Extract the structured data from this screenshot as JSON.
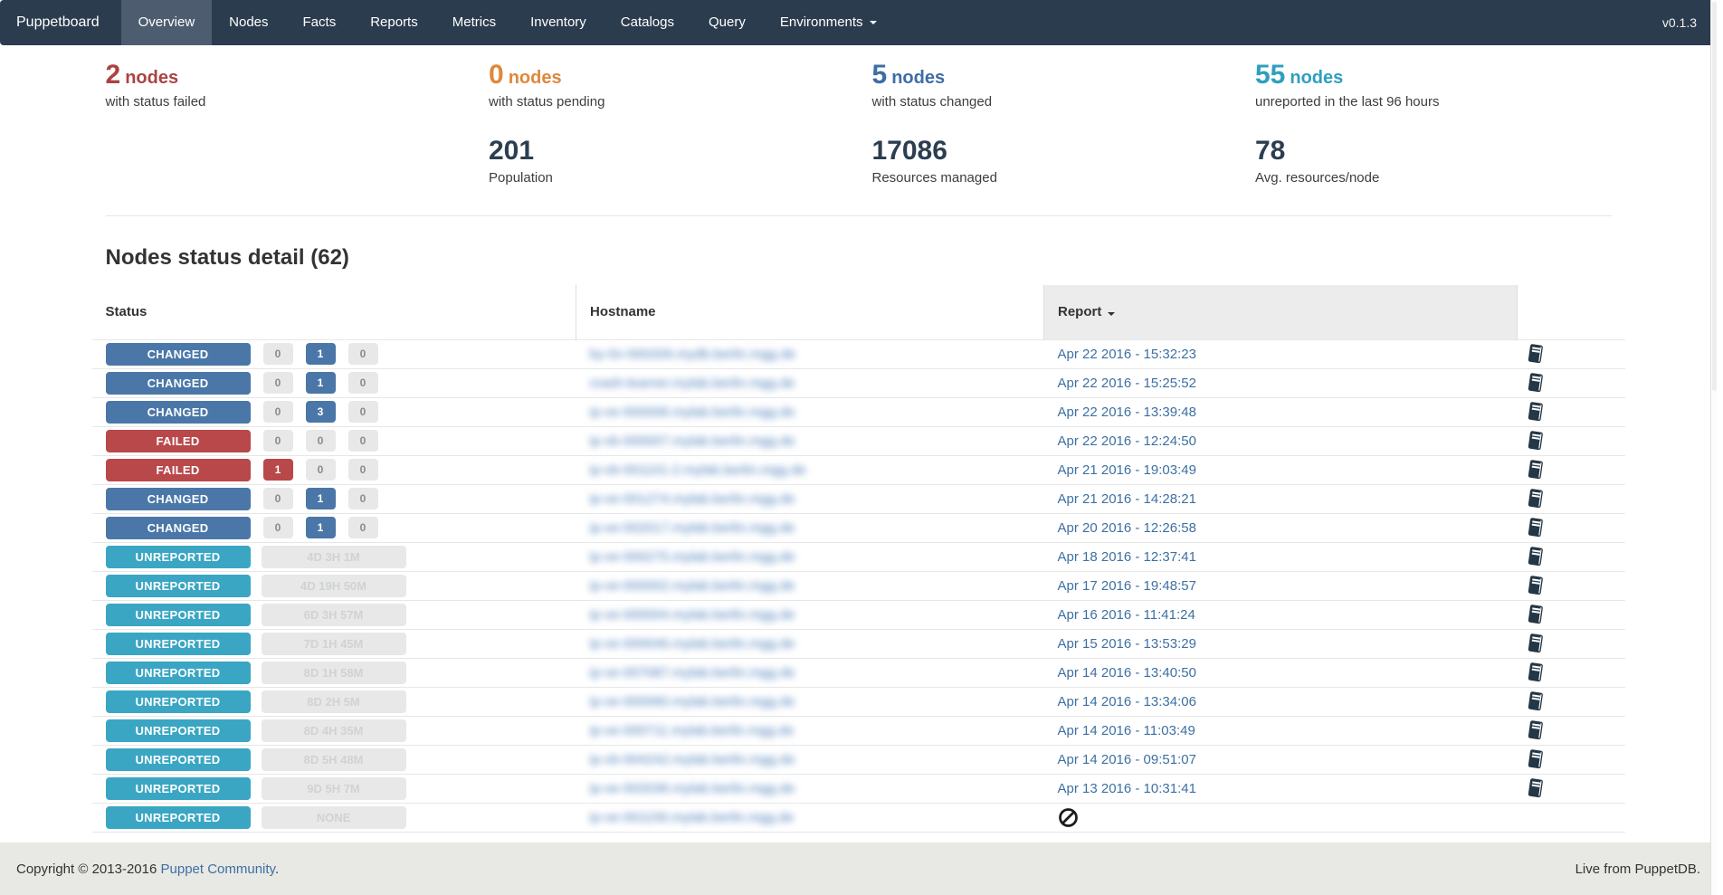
{
  "navbar": {
    "brand": "Puppetboard",
    "items": [
      {
        "label": "Overview",
        "active": true
      },
      {
        "label": "Nodes"
      },
      {
        "label": "Facts"
      },
      {
        "label": "Reports"
      },
      {
        "label": "Metrics"
      },
      {
        "label": "Inventory"
      },
      {
        "label": "Catalogs"
      },
      {
        "label": "Query"
      },
      {
        "label": "Environments",
        "dropdown": true
      }
    ],
    "version": "v0.1.3"
  },
  "stats": {
    "columns": [
      {
        "top": {
          "count": "2",
          "unit": "nodes",
          "label": "with status failed"
        },
        "bottom": null
      },
      {
        "top": {
          "count": "0",
          "unit": "nodes",
          "label": "with status pending"
        },
        "bottom": {
          "value": "201",
          "label": "Population"
        }
      },
      {
        "top": {
          "count": "5",
          "unit": "nodes",
          "label": "with status changed"
        },
        "bottom": {
          "value": "17086",
          "label": "Resources managed"
        }
      },
      {
        "top": {
          "count": "55",
          "unit": "nodes",
          "label": "unreported in the last 96 hours"
        },
        "bottom": {
          "value": "78",
          "label": "Avg. resources/node"
        }
      }
    ]
  },
  "table": {
    "title": "Nodes status detail (62)",
    "headers": [
      "Status",
      "Hostname",
      "Report"
    ],
    "sorted_column": "Report",
    "sort_direction": "desc",
    "rows": [
      {
        "status": "CHANGED",
        "counts": [
          {
            "v": "0",
            "t": "muted"
          },
          {
            "v": "1",
            "t": "changed"
          },
          {
            "v": "0",
            "t": "muted"
          }
        ],
        "hostname_redacted": "by-0v-000209.mydb.berlin.mgg.de",
        "report": "Apr 22 2016 - 15:32:23"
      },
      {
        "status": "CHANGED",
        "counts": [
          {
            "v": "0",
            "t": "muted"
          },
          {
            "v": "1",
            "t": "changed"
          },
          {
            "v": "0",
            "t": "muted"
          }
        ],
        "hostname_redacted": "crash-learner.mylab.berlin.mgg.de",
        "report": "Apr 22 2016 - 15:25:52"
      },
      {
        "status": "CHANGED",
        "counts": [
          {
            "v": "0",
            "t": "muted"
          },
          {
            "v": "3",
            "t": "changed"
          },
          {
            "v": "0",
            "t": "muted"
          }
        ],
        "hostname_redacted": "ip-ve-000006.mylab.berlin.mgg.de",
        "report": "Apr 22 2016 - 13:39:48"
      },
      {
        "status": "FAILED",
        "counts": [
          {
            "v": "0",
            "t": "muted"
          },
          {
            "v": "0",
            "t": "muted"
          },
          {
            "v": "0",
            "t": "muted"
          }
        ],
        "hostname_redacted": "ip-vb-000007.mylab.berlin.mgg.de",
        "report": "Apr 22 2016 - 12:24:50"
      },
      {
        "status": "FAILED",
        "counts": [
          {
            "v": "1",
            "t": "failed"
          },
          {
            "v": "0",
            "t": "muted"
          },
          {
            "v": "0",
            "t": "muted"
          }
        ],
        "hostname_redacted": "ip-vb-001101-2.mylab.berlin.mgg.de",
        "report": "Apr 21 2016 - 19:03:49"
      },
      {
        "status": "CHANGED",
        "counts": [
          {
            "v": "0",
            "t": "muted"
          },
          {
            "v": "1",
            "t": "changed"
          },
          {
            "v": "0",
            "t": "muted"
          }
        ],
        "hostname_redacted": "ip-ve-001274.mylab.berlin.mgg.de",
        "report": "Apr 21 2016 - 14:28:21"
      },
      {
        "status": "CHANGED",
        "counts": [
          {
            "v": "0",
            "t": "muted"
          },
          {
            "v": "1",
            "t": "changed"
          },
          {
            "v": "0",
            "t": "muted"
          }
        ],
        "hostname_redacted": "ip-ve-002017.mylab.berlin.mgg.de",
        "report": "Apr 20 2016 - 12:26:58"
      },
      {
        "status": "UNREPORTED",
        "age": "4D 3H 1M",
        "hostname_redacted": "ip-ve-000275.mylab.berlin.mgg.de",
        "report": "Apr 18 2016 - 12:37:41"
      },
      {
        "status": "UNREPORTED",
        "age": "4D 19H 50M",
        "hostname_redacted": "ip-ve-000002.mylab.berlin.mgg.de",
        "report": "Apr 17 2016 - 19:48:57"
      },
      {
        "status": "UNREPORTED",
        "age": "6D 3H 57M",
        "hostname_redacted": "ip-ve-000004.mylab.berlin.mgg.de",
        "report": "Apr 16 2016 - 11:41:24"
      },
      {
        "status": "UNREPORTED",
        "age": "7D 1H 45M",
        "hostname_redacted": "ip-ve-000046.mylab.berlin.mgg.de",
        "report": "Apr 15 2016 - 13:53:29"
      },
      {
        "status": "UNREPORTED",
        "age": "8D 1H 58M",
        "hostname_redacted": "ip-ve-007087.mylab.berlin.mgg.de",
        "report": "Apr 14 2016 - 13:40:50"
      },
      {
        "status": "UNREPORTED",
        "age": "8D 2H 5M",
        "hostname_redacted": "ip-ve-000060.mylab.berlin.mgg.de",
        "report": "Apr 14 2016 - 13:34:06"
      },
      {
        "status": "UNREPORTED",
        "age": "8D 4H 35M",
        "hostname_redacted": "ip-ve-000711.mylab.berlin.mgg.de",
        "report": "Apr 14 2016 - 11:03:49"
      },
      {
        "status": "UNREPORTED",
        "age": "8D 5H 48M",
        "hostname_redacted": "ip-vb-004242.mylab.berlin.mgg.de",
        "report": "Apr 14 2016 - 09:51:07"
      },
      {
        "status": "UNREPORTED",
        "age": "9D 5H 7M",
        "hostname_redacted": "ip-ve-002036.mylab.berlin.mgg.de",
        "report": "Apr 13 2016 - 10:31:41"
      },
      {
        "status": "UNREPORTED",
        "age": "NONE",
        "hostname_redacted": "ip-ve-001156.mylab.berlin.mgg.de",
        "report": null
      }
    ]
  },
  "footer": {
    "copyright_prefix": "Copyright © 2013-2016 ",
    "copyright_link": "Puppet Community",
    "copyright_suffix": ".",
    "live": "Live from PuppetDB."
  },
  "colors": {
    "navbar_bg": "#2b3c4e",
    "navbar_active_bg": "#4d5d6f",
    "failed": "#b9484b",
    "failed_text": "#a94442",
    "pending_text": "#e0883a",
    "changed": "#4a77a8",
    "changed_text": "#3e6da5",
    "unreported": "#3aa6c3",
    "unreported_text": "#2f9fbe",
    "dark_number": "#2c3e50",
    "link": "#3d70a2",
    "muted_badge_bg": "#e8e8e8",
    "sorted_header_bg": "#ececec",
    "footer_bg": "#e8e8e4"
  }
}
